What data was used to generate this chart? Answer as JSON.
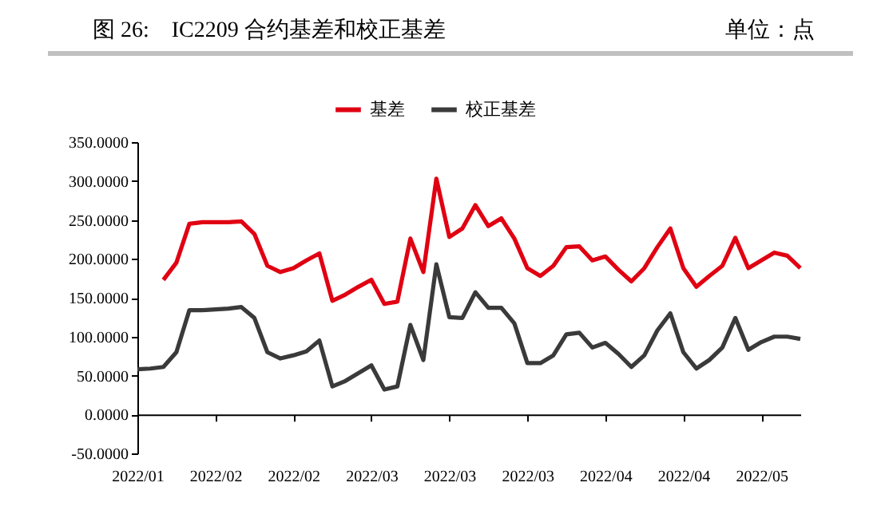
{
  "chart_data": {
    "type": "line",
    "title": "图 26:    IC2209 合约基差和校正基差",
    "annotations": [
      "单位：点"
    ],
    "categories": [
      "2022/01",
      null,
      null,
      null,
      null,
      null,
      "2022/02",
      null,
      null,
      null,
      null,
      null,
      "2022/02",
      null,
      null,
      null,
      null,
      null,
      "2022/03",
      null,
      null,
      null,
      null,
      null,
      "2022/03",
      null,
      null,
      null,
      null,
      null,
      "2022/03",
      null,
      null,
      null,
      null,
      null,
      "2022/04",
      null,
      null,
      null,
      null,
      null,
      "2022/04",
      null,
      null,
      null,
      null,
      null,
      "2022/05",
      null,
      null,
      null
    ],
    "series": [
      {
        "name": "基差",
        "color": "#e00012",
        "values": [
          null,
          null,
          173,
          195,
          245,
          247,
          247,
          247,
          248,
          232,
          191,
          183,
          188,
          198,
          207,
          146,
          154,
          164,
          173,
          142,
          145,
          226,
          183,
          303,
          228,
          239,
          269,
          242,
          252,
          226,
          188,
          178,
          191,
          215,
          216,
          198,
          203,
          186,
          171,
          188,
          215,
          239,
          188,
          164,
          178,
          191,
          227,
          188,
          198,
          208,
          204,
          188
        ]
      },
      {
        "name": "校正基差",
        "color": "#3a3a3a",
        "values": [
          58,
          59,
          61,
          80,
          134,
          134,
          135,
          136,
          138,
          124,
          80,
          72,
          76,
          81,
          95,
          36,
          43,
          53,
          63,
          32,
          36,
          115,
          70,
          193,
          125,
          124,
          157,
          137,
          137,
          117,
          66,
          66,
          76,
          103,
          105,
          86,
          92,
          78,
          61,
          76,
          108,
          130,
          80,
          59,
          70,
          86,
          124,
          83,
          93,
          100,
          100,
          97
        ]
      }
    ],
    "ylim": [
      -50,
      350
    ],
    "yticks": [
      {
        "value": -50,
        "label": "-50.0000"
      },
      {
        "value": 0,
        "label": "0.0000"
      },
      {
        "value": 50,
        "label": "50.0000"
      },
      {
        "value": 100,
        "label": "100.0000"
      },
      {
        "value": 150,
        "label": "150.0000"
      },
      {
        "value": 200,
        "label": "200.0000"
      },
      {
        "value": 250,
        "label": "250.0000"
      },
      {
        "value": 300,
        "label": "300.0000"
      },
      {
        "value": 350,
        "label": "350.0000"
      }
    ],
    "legend": "top",
    "line_style": "solid",
    "marker": "none"
  }
}
